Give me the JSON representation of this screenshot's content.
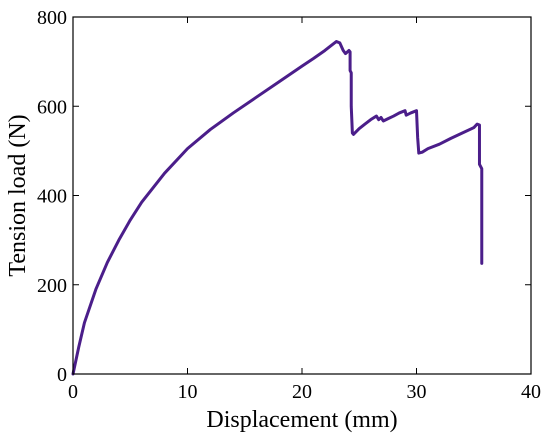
{
  "chart_data": {
    "type": "line",
    "title": "",
    "xlabel": "Displacement (mm)",
    "ylabel": "Tension load (N)",
    "xlim": [
      0,
      40
    ],
    "ylim": [
      0,
      800
    ],
    "x_ticks": [
      0,
      10,
      20,
      30,
      40
    ],
    "y_ticks": [
      0,
      200,
      400,
      600,
      800
    ],
    "x_tick_labels": [
      "0",
      "10",
      "20",
      "30",
      "40"
    ],
    "y_tick_labels": [
      "0",
      "200",
      "400",
      "600",
      "800"
    ],
    "grid": false,
    "legend": "none",
    "series": [
      {
        "color": "#4B1E8A",
        "x": [
          0,
          0.5,
          1,
          2,
          3,
          4,
          5,
          6,
          8,
          10,
          12,
          14,
          16,
          18,
          20,
          21,
          22,
          22.6,
          23.0,
          23.3,
          23.6,
          23.8,
          24.1,
          24.2,
          24.2,
          24.3,
          24.3,
          24.4,
          24.5,
          25,
          25.5,
          26,
          26.5,
          26.7,
          26.9,
          27.1,
          27.5,
          28,
          28.5,
          29,
          29.1,
          29.5,
          30,
          30.1,
          30.2,
          30.5,
          31,
          32,
          33,
          34,
          35,
          35.3,
          35.5,
          35.5,
          35.7,
          35.7
        ],
        "y": [
          0,
          60,
          115,
          190,
          250,
          300,
          345,
          385,
          450,
          505,
          548,
          585,
          620,
          655,
          690,
          707,
          725,
          737,
          745,
          742,
          725,
          718,
          725,
          722,
          680,
          675,
          600,
          540,
          537,
          550,
          560,
          570,
          578,
          570,
          575,
          567,
          572,
          578,
          585,
          590,
          580,
          585,
          590,
          530,
          495,
          497,
          505,
          515,
          528,
          540,
          552,
          560,
          558,
          470,
          460,
          248
        ]
      }
    ]
  }
}
